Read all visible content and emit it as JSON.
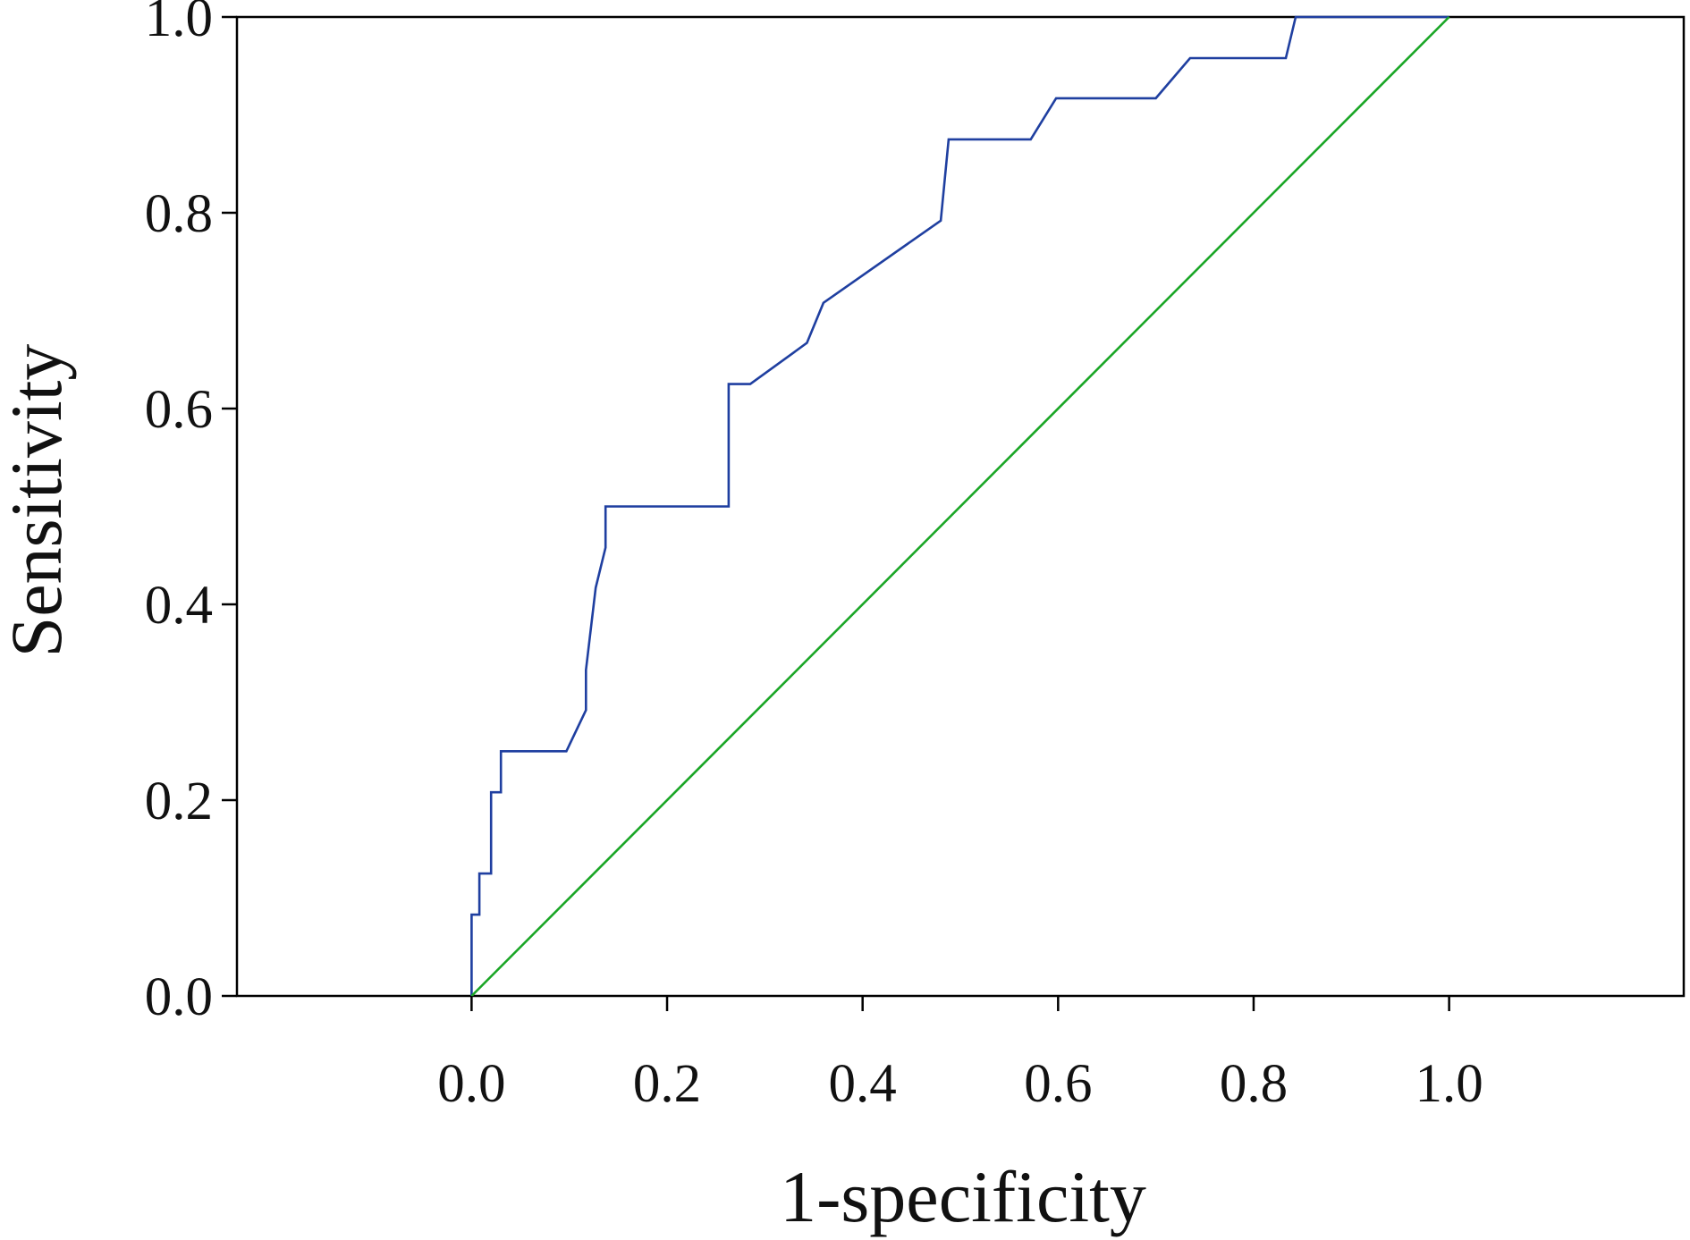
{
  "chart_data": {
    "type": "line",
    "title": "",
    "xlabel": "1-specificity",
    "ylabel": "Sensitivity",
    "xlim": [
      -0.24,
      1.24
    ],
    "ylim": [
      0.0,
      1.0
    ],
    "x_ticks": [
      0.0,
      0.2,
      0.4,
      0.6,
      0.8,
      1.0
    ],
    "y_ticks": [
      0.0,
      0.2,
      0.4,
      0.6,
      0.8,
      1.0
    ],
    "x_tick_labels": [
      "0.0",
      "0.2",
      "0.4",
      "0.6",
      "0.8",
      "1.0"
    ],
    "y_tick_labels": [
      "0.0",
      "0.2",
      "0.4",
      "0.6",
      "0.8",
      "1.0"
    ],
    "grid": false,
    "legend": "none",
    "series": [
      {
        "color": "#1f3fa0",
        "x": [
          0.0,
          0.0,
          0.008,
          0.008,
          0.02,
          0.02,
          0.03,
          0.03,
          0.097,
          0.117,
          0.117,
          0.127,
          0.137,
          0.137,
          0.263,
          0.263,
          0.285,
          0.343,
          0.36,
          0.48,
          0.488,
          0.572,
          0.598,
          0.7,
          0.735,
          0.833,
          0.843,
          1.0
        ],
        "y": [
          0.0,
          0.083,
          0.083,
          0.125,
          0.125,
          0.208,
          0.208,
          0.25,
          0.25,
          0.292,
          0.333,
          0.417,
          0.458,
          0.5,
          0.5,
          0.625,
          0.625,
          0.667,
          0.708,
          0.792,
          0.875,
          0.875,
          0.917,
          0.917,
          0.958,
          0.958,
          1.0,
          1.0
        ]
      },
      {
        "color": "#1aa626",
        "x": [
          0.0,
          1.0
        ],
        "y": [
          0.0,
          1.0
        ]
      }
    ]
  }
}
